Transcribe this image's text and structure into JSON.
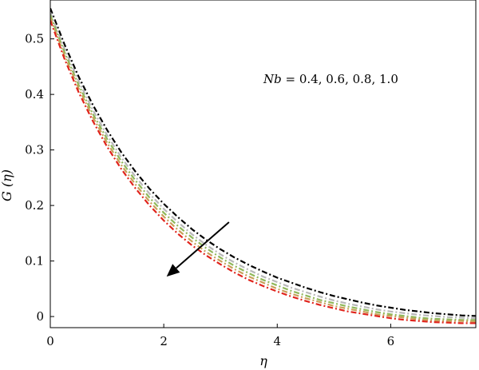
{
  "chart_data": {
    "type": "line",
    "title": "",
    "xlabel": "η",
    "ylabel": "G (η)",
    "xlim": [
      0,
      7.5
    ],
    "ylim": [
      -0.02,
      0.57
    ],
    "xticks": [
      0,
      2,
      4,
      6
    ],
    "yticks": [
      0,
      0.1,
      0.2,
      0.3,
      0.4,
      0.5
    ],
    "x": [
      0,
      0.25,
      0.5,
      0.75,
      1,
      1.25,
      1.5,
      1.75,
      2,
      2.25,
      2.5,
      2.75,
      3,
      3.25,
      3.5,
      3.75,
      4,
      4.25,
      4.5,
      4.75,
      5,
      5.25,
      5.5,
      5.75,
      6,
      6.25,
      6.5,
      6.75,
      7,
      7.25,
      7.5
    ],
    "series": [
      {
        "values": [
          0.555,
          0.49,
          0.432,
          0.381,
          0.336,
          0.296,
          0.261,
          0.23,
          0.203,
          0.179,
          0.157,
          0.138,
          0.121,
          0.106,
          0.093,
          0.081,
          0.07,
          0.061,
          0.052,
          0.044,
          0.037,
          0.031,
          0.025,
          0.02,
          0.016,
          0.012,
          0.009,
          0.006,
          0.004,
          0.002,
          0.001
        ],
        "color": "#000000",
        "dash": "7,3,2,3"
      },
      {
        "values": [
          0.548,
          0.482,
          0.424,
          0.372,
          0.327,
          0.287,
          0.252,
          0.221,
          0.194,
          0.17,
          0.148,
          0.129,
          0.112,
          0.097,
          0.084,
          0.072,
          0.062,
          0.052,
          0.044,
          0.036,
          0.029,
          0.023,
          0.018,
          0.013,
          0.009,
          0.006,
          0.003,
          0.001,
          -0.001,
          -0.002,
          -0.003
        ],
        "color": "#b8b8b8",
        "dash": "7,3,2,3"
      },
      {
        "values": [
          0.543,
          0.476,
          0.417,
          0.365,
          0.32,
          0.28,
          0.245,
          0.214,
          0.187,
          0.163,
          0.142,
          0.123,
          0.106,
          0.091,
          0.078,
          0.066,
          0.056,
          0.046,
          0.038,
          0.03,
          0.024,
          0.018,
          0.013,
          0.008,
          0.004,
          0.001,
          -0.002,
          -0.004,
          -0.005,
          -0.006,
          -0.006
        ],
        "color": "#8fb85a",
        "dash": "7,3,2,3"
      },
      {
        "values": [
          0.538,
          0.47,
          0.411,
          0.359,
          0.313,
          0.273,
          0.238,
          0.207,
          0.18,
          0.156,
          0.135,
          0.116,
          0.1,
          0.085,
          0.072,
          0.061,
          0.05,
          0.041,
          0.033,
          0.026,
          0.019,
          0.014,
          0.009,
          0.004,
          0.001,
          -0.002,
          -0.005,
          -0.007,
          -0.008,
          -0.008,
          -0.009
        ],
        "color": "#c8a05a",
        "dash": "7,3,2,3"
      },
      {
        "values": [
          0.533,
          0.464,
          0.404,
          0.352,
          0.306,
          0.266,
          0.231,
          0.2,
          0.173,
          0.149,
          0.128,
          0.11,
          0.094,
          0.079,
          0.066,
          0.055,
          0.045,
          0.036,
          0.028,
          0.021,
          0.015,
          0.009,
          0.005,
          0.001,
          -0.003,
          -0.006,
          -0.008,
          -0.01,
          -0.011,
          -0.012,
          -0.012
        ],
        "color": "#e0241c",
        "dash": "7,3,2,3"
      }
    ],
    "annotation": "Nb = 0.4, 0.6, 0.8, 1.0",
    "arrow": {
      "from": [
        3.15,
        0.17
      ],
      "to": [
        2.05,
        0.072
      ]
    }
  }
}
